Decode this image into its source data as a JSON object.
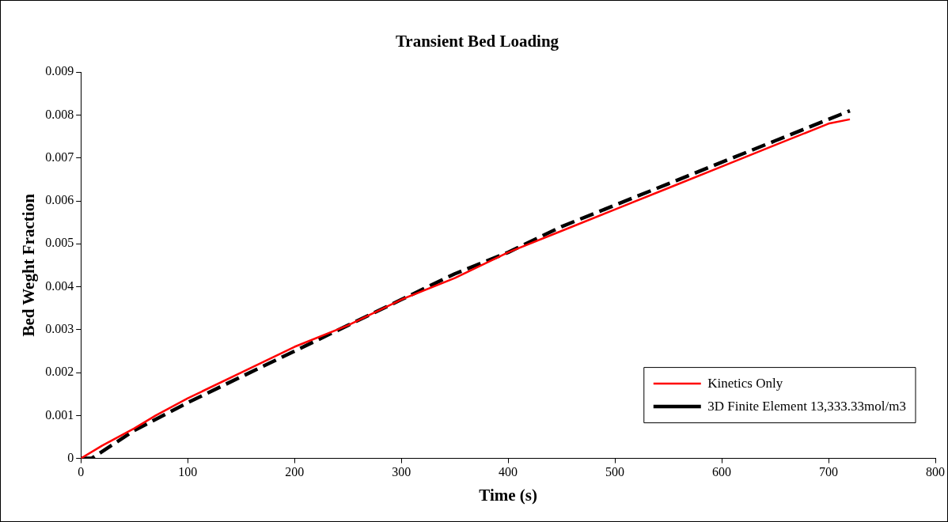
{
  "chart_data": {
    "type": "line",
    "title": "Transient Bed Loading",
    "xlabel": "Time (s)",
    "ylabel": "Bed Weght Fraction",
    "xlim": [
      0,
      800
    ],
    "xticks": [
      0,
      100,
      200,
      300,
      400,
      500,
      600,
      700,
      800
    ],
    "ylim": [
      0,
      0.009
    ],
    "yticks": [
      0,
      0.001,
      0.002,
      0.003,
      0.004,
      0.005,
      0.006,
      0.007,
      0.008,
      0.009
    ],
    "grid": false,
    "legend": "bottom right",
    "marker": "none",
    "series": [
      {
        "name": "Kinetics Only",
        "color": "#ff0000",
        "line_style": "solid",
        "x": [
          0,
          20,
          50,
          70,
          100,
          150,
          200,
          250,
          300,
          350,
          400,
          450,
          500,
          550,
          600,
          650,
          700,
          720
        ],
        "values": [
          0,
          0.0003,
          0.0007,
          0.001,
          0.0014,
          0.002,
          0.0026,
          0.0031,
          0.0037,
          0.0042,
          0.0048,
          0.0053,
          0.0058,
          0.0063,
          0.0068,
          0.0073,
          0.0078,
          0.0079
        ]
      },
      {
        "name": "3D Finite Element 13,333.33mol/m3",
        "color": "#000000",
        "line_style": "dashed",
        "x": [
          0,
          10,
          50,
          100,
          150,
          200,
          250,
          300,
          350,
          400,
          450,
          500,
          550,
          600,
          650,
          700,
          720
        ],
        "values": [
          0,
          0,
          0.00065,
          0.0013,
          0.0019,
          0.0025,
          0.0031,
          0.0037,
          0.0043,
          0.0048,
          0.0054,
          0.0059,
          0.0064,
          0.0069,
          0.0074,
          0.0079,
          0.0081
        ]
      }
    ]
  }
}
